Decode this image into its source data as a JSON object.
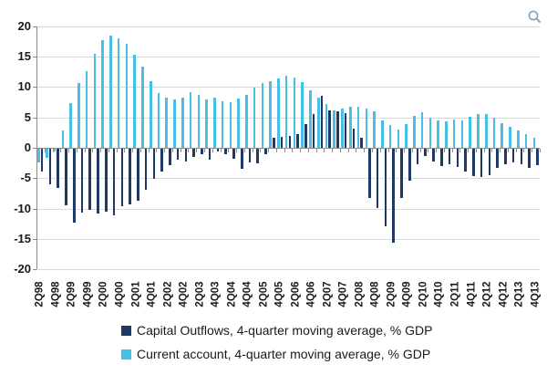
{
  "chart_data": {
    "type": "bar",
    "title": "",
    "categories": [
      "2Q98",
      "3Q98",
      "4Q98",
      "1Q99",
      "2Q99",
      "3Q99",
      "4Q99",
      "1Q00",
      "2Q00",
      "3Q00",
      "4Q00",
      "1Q01",
      "2Q01",
      "3Q01",
      "4Q01",
      "1Q02",
      "2Q02",
      "3Q02",
      "4Q02",
      "1Q03",
      "2Q03",
      "3Q03",
      "4Q03",
      "1Q04",
      "2Q04",
      "3Q04",
      "4Q04",
      "1Q05",
      "2Q05",
      "3Q05",
      "4Q05",
      "1Q06",
      "2Q06",
      "3Q06",
      "4Q06",
      "1Q07",
      "2Q07",
      "3Q07",
      "4Q07",
      "1Q08",
      "2Q08",
      "3Q08",
      "4Q08",
      "1Q09",
      "2Q09",
      "3Q09",
      "4Q09",
      "1Q10",
      "2Q10",
      "3Q10",
      "4Q10",
      "1Q11",
      "2Q11",
      "3Q11",
      "4Q11",
      "1Q12",
      "2Q12",
      "3Q12",
      "4Q12",
      "1Q13",
      "2Q13",
      "3Q13",
      "4Q13"
    ],
    "x_tick_labels": [
      "2Q98",
      "4Q98",
      "2Q99",
      "4Q99",
      "2Q00",
      "4Q00",
      "2Q01",
      "4Q01",
      "2Q02",
      "4Q02",
      "2Q03",
      "4Q03",
      "2Q04",
      "4Q04",
      "2Q05",
      "4Q05",
      "2Q06",
      "4Q06",
      "2Q07",
      "4Q07",
      "2Q08",
      "4Q08",
      "2Q09",
      "4Q09",
      "2Q10",
      "4Q10",
      "2Q11",
      "4Q11",
      "2Q12",
      "4Q12",
      "2Q13",
      "4Q13"
    ],
    "y_tick_labels": [
      "20",
      "15",
      "10",
      "5",
      "0",
      "-5",
      "-10",
      "-15",
      "-20"
    ],
    "ylim": [
      -20,
      20
    ],
    "ytick_step": 5,
    "grid": true,
    "legend_position": "bottom",
    "series": [
      {
        "name": "Capital Outflows, 4-quarter moving average, % GDP",
        "color": "#1f3864",
        "values": [
          -3.8,
          -5.8,
          -6.5,
          -9.3,
          -12.2,
          -10.5,
          -10.1,
          -10.7,
          -10.4,
          -10.9,
          -9.4,
          -9.1,
          -8.5,
          -6.7,
          -5.0,
          -3.8,
          -2.7,
          -1.8,
          -2.1,
          -1.3,
          -0.9,
          -1.8,
          -0.5,
          -0.9,
          -1.6,
          -3.3,
          -2.2,
          -2.4,
          -0.9,
          1.7,
          1.8,
          1.9,
          2.2,
          3.9,
          5.6,
          8.5,
          6.2,
          6.0,
          5.7,
          3.1,
          1.6,
          -8.1,
          -9.7,
          -12.8,
          -15.5,
          -8.1,
          -5.3,
          -2.6,
          -1.2,
          -2.1,
          -2.8,
          -2.6,
          -3.0,
          -3.8,
          -4.5,
          -4.6,
          -4.4,
          -3.2,
          -2.6,
          -2.3,
          -2.6,
          -3.1,
          -2.7
        ]
      },
      {
        "name": "Current account, 4-quarter moving average, % GDP",
        "color": "#45bfe6",
        "values": [
          -2.2,
          -1.5,
          -0.5,
          2.9,
          7.4,
          10.6,
          12.6,
          15.4,
          17.7,
          18.5,
          18.0,
          17.1,
          15.3,
          13.4,
          11.0,
          9.0,
          8.3,
          8.0,
          8.3,
          9.1,
          8.7,
          8.0,
          8.2,
          7.7,
          7.5,
          8.1,
          8.7,
          9.9,
          10.7,
          11.0,
          11.4,
          11.9,
          11.6,
          10.8,
          9.4,
          8.2,
          7.2,
          6.1,
          6.4,
          6.8,
          6.8,
          6.5,
          6.0,
          4.5,
          3.7,
          3.0,
          3.9,
          5.2,
          5.9,
          5.0,
          4.5,
          4.3,
          4.6,
          4.5,
          5.1,
          5.5,
          5.6,
          4.9,
          4.1,
          3.5,
          2.9,
          2.3,
          1.6
        ]
      }
    ]
  },
  "icons": {
    "zoom_icon_color": "#7fa6bf"
  }
}
